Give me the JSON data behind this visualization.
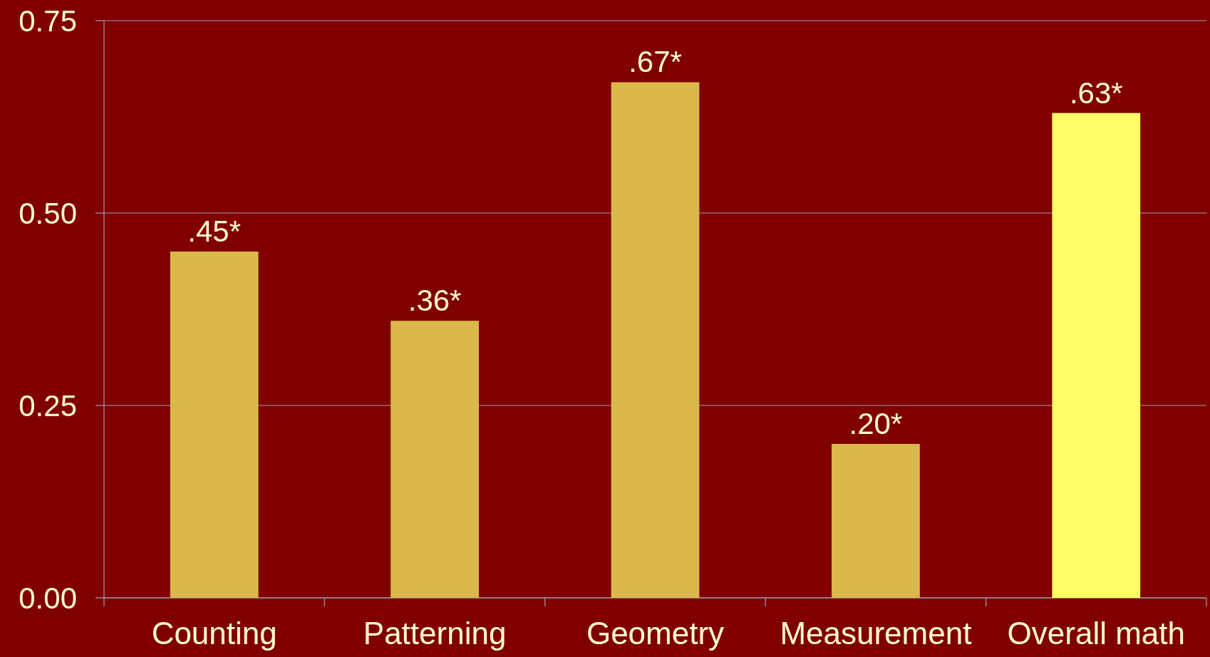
{
  "chart_data": {
    "type": "bar",
    "categories": [
      "Counting",
      "Patterning",
      "Geometry",
      "Measurement",
      "Overall math"
    ],
    "values": [
      0.45,
      0.36,
      0.67,
      0.2,
      0.63
    ],
    "colors": [
      "#dbb84b",
      "#dbb84b",
      "#dbb84b",
      "#dbb84b",
      "#ffff66"
    ],
    "value_labels": [
      ".45*",
      ".36*",
      ".67*",
      ".20*",
      ".63*"
    ],
    "ylim": [
      0,
      0.75
    ],
    "yticks": [
      {
        "value": 0,
        "label": "0.00"
      },
      {
        "value": 0.25,
        "label": "0.25"
      },
      {
        "value": 0.5,
        "label": "0.50"
      },
      {
        "value": 0.75,
        "label": "0.75"
      }
    ],
    "grid": "y"
  }
}
